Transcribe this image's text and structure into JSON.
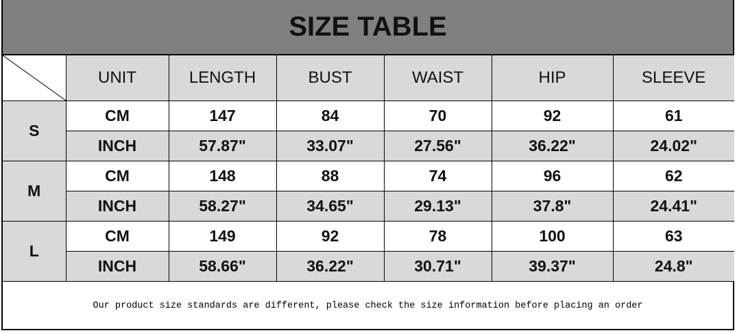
{
  "title": "SIZE TABLE",
  "headers": [
    "UNIT",
    "LENGTH",
    "BUST",
    "WAIST",
    "HIP",
    "SLEEVE"
  ],
  "sizes": [
    {
      "size": "S",
      "rows": [
        {
          "unit": "CM",
          "values": [
            "147",
            "84",
            "70",
            "92",
            "61"
          ]
        },
        {
          "unit": "INCH",
          "values": [
            "57.87\"",
            "33.07\"",
            "27.56\"",
            "36.22\"",
            "24.02\""
          ]
        }
      ]
    },
    {
      "size": "M",
      "rows": [
        {
          "unit": "CM",
          "values": [
            "148",
            "88",
            "74",
            "96",
            "62"
          ]
        },
        {
          "unit": "INCH",
          "values": [
            "58.27\"",
            "34.65\"",
            "29.13\"",
            "37.8\"",
            "24.41\""
          ]
        }
      ]
    },
    {
      "size": "L",
      "rows": [
        {
          "unit": "CM",
          "values": [
            "149",
            "92",
            "78",
            "100",
            "63"
          ]
        },
        {
          "unit": "INCH",
          "values": [
            "58.66\"",
            "36.22\"",
            "30.71\"",
            "39.37\"",
            "24.8\""
          ]
        }
      ]
    }
  ],
  "note": "Our product size standards are different, please check the size information before placing an order",
  "colors": {
    "title_bg": "#808080",
    "cell_gray": "#d9d9d9"
  }
}
